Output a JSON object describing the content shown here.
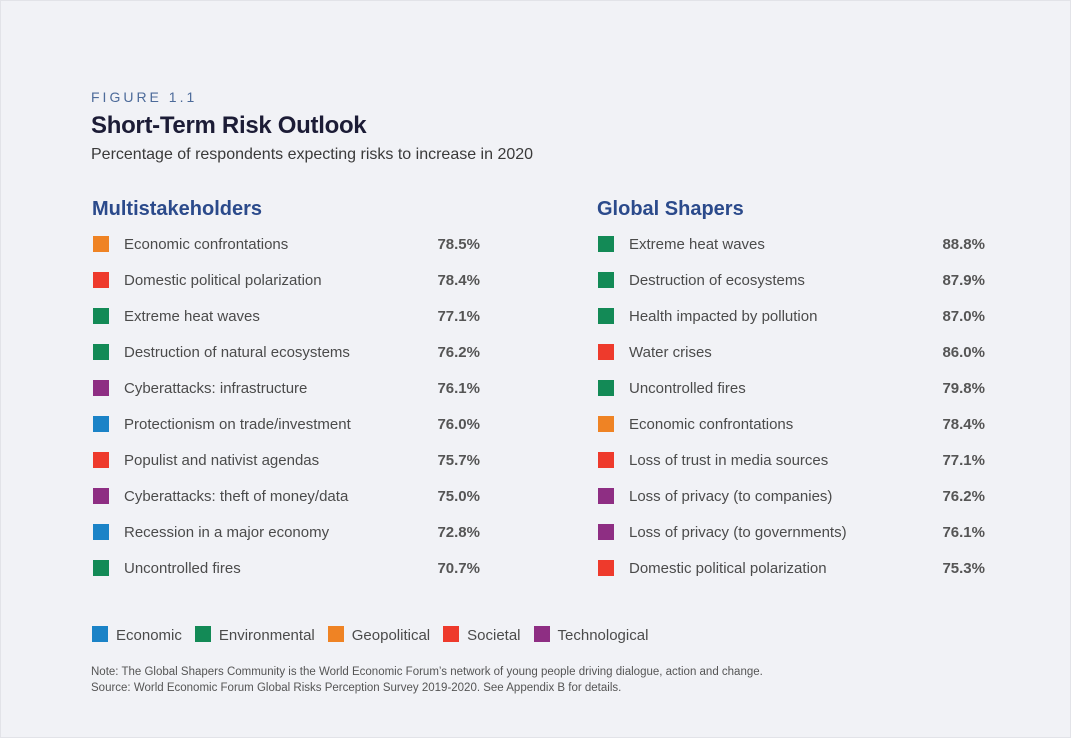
{
  "figure_label": "FIGURE 1.1",
  "title": "Short-Term Risk Outlook",
  "subtitle": "Percentage of respondents expecting risks to increase in 2020",
  "colors": {
    "Economic": "#1b83c7",
    "Environmental": "#138a56",
    "Geopolitical": "#ef8324",
    "Societal": "#ee3a2c",
    "Technological": "#8e2e83"
  },
  "left": {
    "heading": "Multistakeholders",
    "rows": [
      {
        "label": "Economic confrontations",
        "value": "78.5%",
        "category": "Geopolitical"
      },
      {
        "label": "Domestic political polarization",
        "value": "78.4%",
        "category": "Societal"
      },
      {
        "label": "Extreme heat waves",
        "value": "77.1%",
        "category": "Environmental"
      },
      {
        "label": "Destruction of natural ecosystems",
        "value": "76.2%",
        "category": "Environmental"
      },
      {
        "label": "Cyberattacks: infrastructure",
        "value": "76.1%",
        "category": "Technological"
      },
      {
        "label": "Protectionism on trade/investment",
        "value": "76.0%",
        "category": "Economic"
      },
      {
        "label": "Populist and nativist agendas",
        "value": "75.7%",
        "category": "Societal"
      },
      {
        "label": "Cyberattacks: theft of money/data",
        "value": "75.0%",
        "category": "Technological"
      },
      {
        "label": "Recession in a major economy",
        "value": "72.8%",
        "category": "Economic"
      },
      {
        "label": "Uncontrolled fires",
        "value": "70.7%",
        "category": "Environmental"
      }
    ]
  },
  "right": {
    "heading": "Global Shapers",
    "rows": [
      {
        "label": "Extreme heat waves",
        "value": "88.8%",
        "category": "Environmental"
      },
      {
        "label": "Destruction of ecosystems",
        "value": "87.9%",
        "category": "Environmental"
      },
      {
        "label": "Health impacted by pollution",
        "value": "87.0%",
        "category": "Environmental"
      },
      {
        "label": "Water crises",
        "value": "86.0%",
        "category": "Societal"
      },
      {
        "label": "Uncontrolled fires",
        "value": "79.8%",
        "category": "Environmental"
      },
      {
        "label": "Economic confrontations",
        "value": "78.4%",
        "category": "Geopolitical"
      },
      {
        "label": "Loss of trust in media sources",
        "value": "77.1%",
        "category": "Societal"
      },
      {
        "label": "Loss of privacy (to companies)",
        "value": "76.2%",
        "category": "Technological"
      },
      {
        "label": "Loss of privacy (to governments)",
        "value": "76.1%",
        "category": "Technological"
      },
      {
        "label": "Domestic political polarization",
        "value": "75.3%",
        "category": "Societal"
      }
    ]
  },
  "legend": [
    "Economic",
    "Environmental",
    "Geopolitical",
    "Societal",
    "Technological"
  ],
  "note_line1": "Note: The Global Shapers Community is the World Economic Forum’s network of young people driving dialogue, action and change.",
  "note_line2": "Source: World Economic Forum Global Risks Perception Survey 2019-2020. See Appendix B for details."
}
